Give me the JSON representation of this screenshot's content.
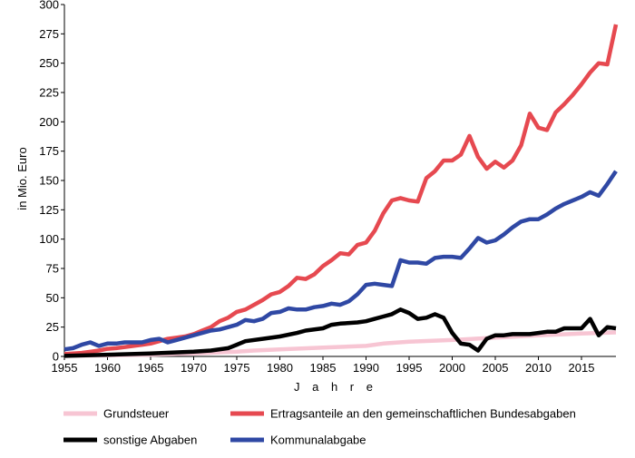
{
  "chart_data": {
    "type": "line",
    "title": "",
    "xlabel": "J a h r e",
    "ylabel": "in Mio. Euro",
    "xlim": [
      1955,
      2019
    ],
    "ylim": [
      0,
      300
    ],
    "x_ticks": [
      1955,
      1960,
      1965,
      1970,
      1975,
      1980,
      1985,
      1990,
      1995,
      2000,
      2005,
      2010,
      2015
    ],
    "y_ticks": [
      0,
      25,
      50,
      75,
      100,
      125,
      150,
      175,
      200,
      225,
      250,
      275,
      300
    ],
    "grid": false,
    "legend_position": "bottom",
    "series": [
      {
        "name": "Grundsteuer",
        "color": "#f7c5d3",
        "points": [
          [
            1955,
            0.5
          ],
          [
            1960,
            1
          ],
          [
            1965,
            1.5
          ],
          [
            1970,
            2.5
          ],
          [
            1975,
            4
          ],
          [
            1977,
            5
          ],
          [
            1980,
            6
          ],
          [
            1985,
            7.5
          ],
          [
            1990,
            9
          ],
          [
            1992,
            11
          ],
          [
            1995,
            12.5
          ],
          [
            2000,
            14
          ],
          [
            2005,
            16
          ],
          [
            2010,
            18
          ],
          [
            2015,
            19.5
          ],
          [
            2019,
            20.5
          ]
        ]
      },
      {
        "name": "Ertragsanteile an den gemeinschaftlichen Bundesabgaben",
        "color": "#e64950",
        "points": [
          [
            1955,
            2
          ],
          [
            1956,
            2.5
          ],
          [
            1957,
            3
          ],
          [
            1958,
            4
          ],
          [
            1959,
            5
          ],
          [
            1960,
            6.5
          ],
          [
            1961,
            7
          ],
          [
            1962,
            8
          ],
          [
            1963,
            9
          ],
          [
            1964,
            10
          ],
          [
            1965,
            11
          ],
          [
            1966,
            13
          ],
          [
            1967,
            15
          ],
          [
            1968,
            16
          ],
          [
            1969,
            17
          ],
          [
            1970,
            19
          ],
          [
            1971,
            22
          ],
          [
            1972,
            25
          ],
          [
            1973,
            30
          ],
          [
            1974,
            33
          ],
          [
            1975,
            38
          ],
          [
            1976,
            40
          ],
          [
            1977,
            44
          ],
          [
            1978,
            48
          ],
          [
            1979,
            53
          ],
          [
            1980,
            55
          ],
          [
            1981,
            60
          ],
          [
            1982,
            67
          ],
          [
            1983,
            66
          ],
          [
            1984,
            70
          ],
          [
            1985,
            77
          ],
          [
            1986,
            82
          ],
          [
            1987,
            88
          ],
          [
            1988,
            87
          ],
          [
            1989,
            95
          ],
          [
            1990,
            97
          ],
          [
            1991,
            107
          ],
          [
            1992,
            122
          ],
          [
            1993,
            133
          ],
          [
            1994,
            135
          ],
          [
            1995,
            133
          ],
          [
            1996,
            132
          ],
          [
            1997,
            152
          ],
          [
            1998,
            158
          ],
          [
            1999,
            167
          ],
          [
            2000,
            167
          ],
          [
            2001,
            172
          ],
          [
            2002,
            188
          ],
          [
            2003,
            170
          ],
          [
            2004,
            160
          ],
          [
            2005,
            166
          ],
          [
            2006,
            161
          ],
          [
            2007,
            167
          ],
          [
            2008,
            180
          ],
          [
            2009,
            207
          ],
          [
            2010,
            195
          ],
          [
            2011,
            193
          ],
          [
            2012,
            208
          ],
          [
            2013,
            215
          ],
          [
            2014,
            223
          ],
          [
            2015,
            232
          ],
          [
            2016,
            242
          ],
          [
            2017,
            250
          ],
          [
            2018,
            249
          ],
          [
            2019,
            283
          ]
        ]
      },
      {
        "name": "sonstige Abgaben",
        "color": "#000000",
        "points": [
          [
            1955,
            0.5
          ],
          [
            1960,
            1.5
          ],
          [
            1965,
            2.5
          ],
          [
            1970,
            4
          ],
          [
            1972,
            5
          ],
          [
            1974,
            7
          ],
          [
            1975,
            10
          ],
          [
            1976,
            13
          ],
          [
            1978,
            15
          ],
          [
            1980,
            17
          ],
          [
            1982,
            20
          ],
          [
            1983,
            22
          ],
          [
            1985,
            24
          ],
          [
            1986,
            27
          ],
          [
            1987,
            28
          ],
          [
            1989,
            29
          ],
          [
            1990,
            30
          ],
          [
            1991,
            32
          ],
          [
            1992,
            34
          ],
          [
            1993,
            36
          ],
          [
            1994,
            40
          ],
          [
            1995,
            37
          ],
          [
            1996,
            32
          ],
          [
            1997,
            33
          ],
          [
            1998,
            36
          ],
          [
            1999,
            33
          ],
          [
            2000,
            20
          ],
          [
            2001,
            11
          ],
          [
            2002,
            10
          ],
          [
            2003,
            5
          ],
          [
            2004,
            15
          ],
          [
            2005,
            18
          ],
          [
            2006,
            18
          ],
          [
            2007,
            19
          ],
          [
            2008,
            19
          ],
          [
            2009,
            19
          ],
          [
            2010,
            20
          ],
          [
            2011,
            21
          ],
          [
            2012,
            21
          ],
          [
            2013,
            24
          ],
          [
            2014,
            24
          ],
          [
            2015,
            24
          ],
          [
            2016,
            32
          ],
          [
            2017,
            18
          ],
          [
            2018,
            25
          ],
          [
            2019,
            24
          ]
        ]
      },
      {
        "name": "Kommunalabgabe",
        "color": "#2f48a4",
        "points": [
          [
            1955,
            6
          ],
          [
            1956,
            7
          ],
          [
            1957,
            10
          ],
          [
            1958,
            12
          ],
          [
            1959,
            9
          ],
          [
            1960,
            11
          ],
          [
            1961,
            11
          ],
          [
            1962,
            12
          ],
          [
            1963,
            12
          ],
          [
            1964,
            12
          ],
          [
            1965,
            14
          ],
          [
            1966,
            15
          ],
          [
            1967,
            12
          ],
          [
            1968,
            14
          ],
          [
            1969,
            16
          ],
          [
            1970,
            18
          ],
          [
            1971,
            20
          ],
          [
            1972,
            22
          ],
          [
            1973,
            23
          ],
          [
            1974,
            25
          ],
          [
            1975,
            27
          ],
          [
            1976,
            31
          ],
          [
            1977,
            30
          ],
          [
            1978,
            32
          ],
          [
            1979,
            37
          ],
          [
            1980,
            38
          ],
          [
            1981,
            41
          ],
          [
            1982,
            40
          ],
          [
            1983,
            40
          ],
          [
            1984,
            42
          ],
          [
            1985,
            43
          ],
          [
            1986,
            45
          ],
          [
            1987,
            44
          ],
          [
            1988,
            47
          ],
          [
            1989,
            53
          ],
          [
            1990,
            61
          ],
          [
            1991,
            62
          ],
          [
            1992,
            61
          ],
          [
            1993,
            60
          ],
          [
            1994,
            82
          ],
          [
            1995,
            80
          ],
          [
            1996,
            80
          ],
          [
            1997,
            79
          ],
          [
            1998,
            84
          ],
          [
            1999,
            85
          ],
          [
            2000,
            85
          ],
          [
            2001,
            84
          ],
          [
            2002,
            92
          ],
          [
            2003,
            101
          ],
          [
            2004,
            97
          ],
          [
            2005,
            99
          ],
          [
            2006,
            104
          ],
          [
            2007,
            110
          ],
          [
            2008,
            115
          ],
          [
            2009,
            117
          ],
          [
            2010,
            117
          ],
          [
            2011,
            121
          ],
          [
            2012,
            126
          ],
          [
            2013,
            130
          ],
          [
            2014,
            133
          ],
          [
            2015,
            136
          ],
          [
            2016,
            140
          ],
          [
            2017,
            137
          ],
          [
            2018,
            147
          ],
          [
            2019,
            158
          ]
        ]
      }
    ]
  }
}
